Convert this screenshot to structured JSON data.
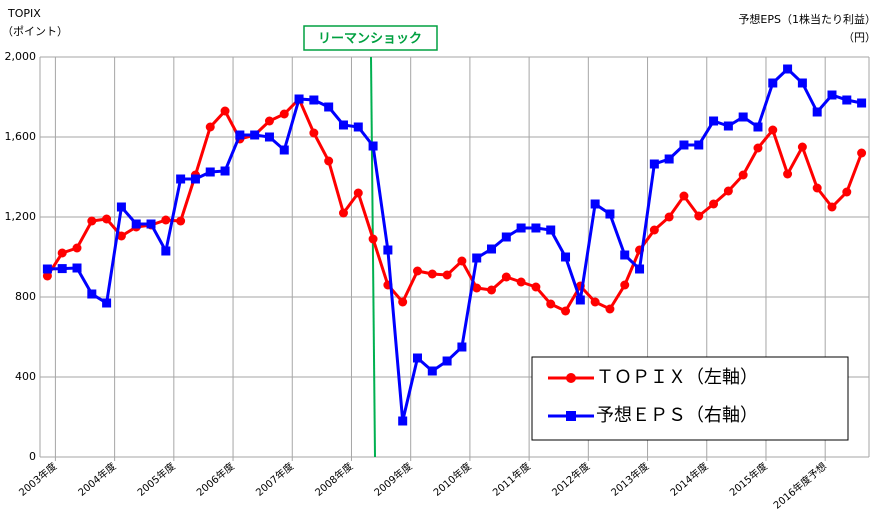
{
  "chart_data": {
    "type": "line",
    "y_label": [
      "TOPIX",
      "（ポイント）"
    ],
    "y2_label": [
      "予想EPS（1株当たり利益）",
      "（円）"
    ],
    "annotation": "リーマンショック",
    "categories": [
      "2003年度",
      null,
      null,
      null,
      "2004年度",
      null,
      null,
      null,
      "2005年度",
      null,
      null,
      null,
      "2006年度",
      null,
      null,
      null,
      "2007年度",
      null,
      null,
      null,
      "2008年度",
      null,
      null,
      null,
      "2009年度",
      null,
      null,
      null,
      "2010年度",
      null,
      null,
      null,
      "2011年度",
      null,
      null,
      null,
      "2012年度",
      null,
      null,
      null,
      "2013年度",
      null,
      null,
      null,
      "2014年度",
      null,
      null,
      null,
      "2015年度",
      null,
      null,
      null,
      "2016年度予想",
      null,
      null,
      null
    ],
    "series": [
      {
        "name": "ＴＯＰＩＸ（左軸）",
        "color": "#ff0000",
        "marker": "circle",
        "values": [
          905,
          1020,
          1045,
          1180,
          1190,
          1105,
          1150,
          1160,
          1185,
          1180,
          1410,
          1650,
          1730,
          1590,
          1610,
          1680,
          1715,
          1790,
          1620,
          1480,
          1220,
          1320,
          1090,
          860,
          775,
          930,
          915,
          910,
          980,
          845,
          835,
          900,
          875,
          850,
          765,
          730,
          855,
          775,
          740,
          860,
          1035,
          1135,
          1200,
          1305,
          1205,
          1265,
          1330,
          1410,
          1545,
          1635,
          1415,
          1550,
          1345,
          1250,
          1325,
          1520
        ]
      },
      {
        "name": "予想ＥＰＳ（右軸）",
        "color": "#0000ff",
        "marker": "square",
        "values": [
          940,
          942,
          945,
          815,
          770,
          1250,
          1165,
          1165,
          1030,
          1390,
          1390,
          1425,
          1430,
          1610,
          1610,
          1600,
          1535,
          1790,
          1785,
          1750,
          1660,
          1650,
          1555,
          1035,
          180,
          495,
          430,
          480,
          550,
          995,
          1040,
          1100,
          1145,
          1145,
          1135,
          1000,
          785,
          1265,
          1215,
          1010,
          940,
          1465,
          1490,
          1560,
          1560,
          1680,
          1655,
          1700,
          1650,
          1870,
          1940,
          1870,
          1725,
          1810,
          1785,
          1770
        ]
      }
    ],
    "ylim": [
      0,
      2000
    ],
    "yticks": [
      0,
      400,
      800,
      {
        "value": 1200,
        "label": "1,200"
      },
      {
        "value": 1600,
        "label": "1,600"
      },
      {
        "value": 2000,
        "label": "2,000"
      }
    ],
    "grid": true
  }
}
